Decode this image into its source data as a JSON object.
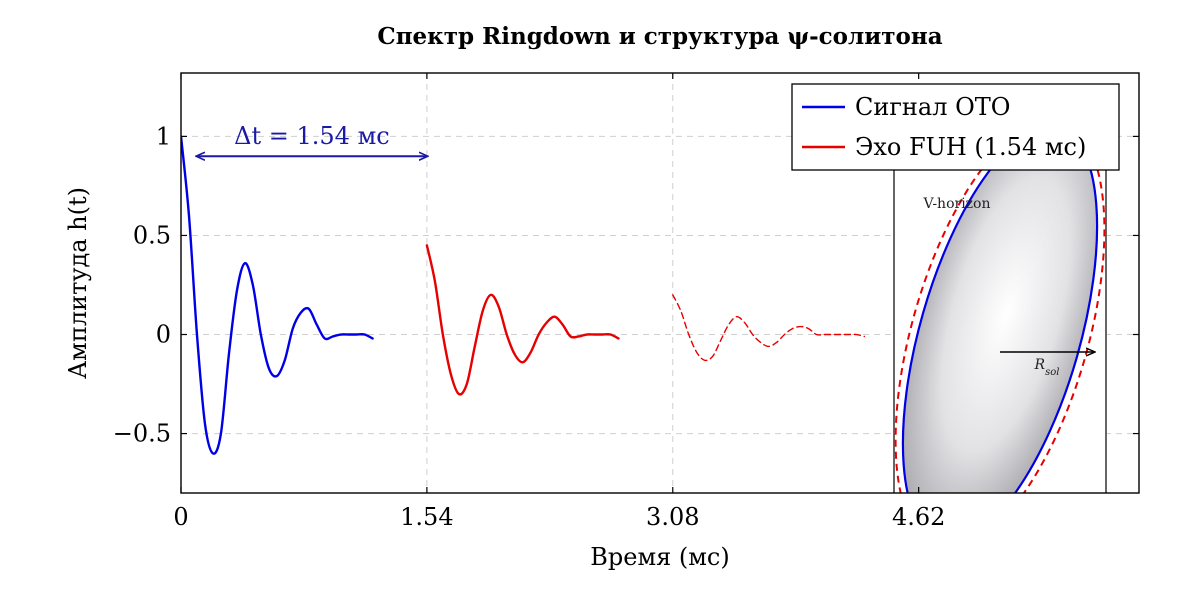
{
  "chart_data": {
    "type": "line",
    "title": "Спектр Ringdown и структура ψ-солитона",
    "xlabel": "Время (мс)",
    "ylabel": "Амплитуда h(t)",
    "xlim": [
      0,
      6
    ],
    "ylim": [
      -0.8,
      1.32
    ],
    "x_ticks": [
      {
        "value": 0,
        "label": "0"
      },
      {
        "value": 1.54,
        "label": "1.54"
      },
      {
        "value": 3.08,
        "label": "3.08"
      },
      {
        "value": 4.62,
        "label": "4.62"
      }
    ],
    "y_ticks": [
      {
        "value": 1,
        "label": "1"
      },
      {
        "value": 0.5,
        "label": "0.5"
      },
      {
        "value": 0,
        "label": "0"
      },
      {
        "value": -0.5,
        "label": "−0.5"
      }
    ],
    "grid": true,
    "legend_position": "top-right",
    "series": [
      {
        "name": "Сигнал ОТО",
        "color": "#0000e6",
        "style": "solid",
        "x": [
          0.0,
          0.05,
          0.1,
          0.15,
          0.2,
          0.25,
          0.3,
          0.35,
          0.4,
          0.45,
          0.5,
          0.55,
          0.6,
          0.65,
          0.7,
          0.75,
          0.8,
          0.85,
          0.9,
          0.95,
          1.0,
          1.05,
          1.1,
          1.15,
          1.2
        ],
        "y": [
          1.0,
          0.6,
          0.0,
          -0.45,
          -0.6,
          -0.5,
          -0.1,
          0.22,
          0.36,
          0.25,
          0.0,
          -0.17,
          -0.21,
          -0.13,
          0.03,
          0.11,
          0.13,
          0.05,
          -0.02,
          -0.01,
          0.0,
          0.0,
          0.0,
          0.0,
          -0.02
        ]
      },
      {
        "name": "Эхо FUH (1.54 мс)",
        "color": "#e60000",
        "style": "solid",
        "x": [
          1.54,
          1.59,
          1.64,
          1.69,
          1.74,
          1.79,
          1.84,
          1.89,
          1.94,
          1.99,
          2.04,
          2.09,
          2.14,
          2.19,
          2.24,
          2.29,
          2.34,
          2.39,
          2.44,
          2.49,
          2.54,
          2.59,
          2.64,
          2.69,
          2.74
        ],
        "y": [
          0.45,
          0.27,
          0.0,
          -0.2,
          -0.3,
          -0.25,
          -0.06,
          0.12,
          0.2,
          0.14,
          0.0,
          -0.1,
          -0.14,
          -0.09,
          0.0,
          0.06,
          0.09,
          0.05,
          -0.01,
          -0.01,
          0.0,
          0.0,
          0.0,
          0.0,
          -0.02
        ]
      },
      {
        "name": "",
        "color": "#e60000",
        "style": "dashed",
        "x": [
          3.08,
          3.13,
          3.18,
          3.23,
          3.28,
          3.33,
          3.38,
          3.43,
          3.48,
          3.53,
          3.58,
          3.63,
          3.68,
          3.73,
          3.78,
          3.83,
          3.88,
          3.93,
          3.98,
          4.03,
          4.08,
          4.13,
          4.18,
          4.23,
          4.28
        ],
        "y": [
          0.2,
          0.12,
          0.0,
          -0.09,
          -0.13,
          -0.11,
          -0.03,
          0.05,
          0.09,
          0.06,
          0.0,
          -0.04,
          -0.06,
          -0.04,
          0.0,
          0.03,
          0.04,
          0.03,
          0.0,
          0.0,
          0.0,
          0.0,
          0.0,
          0.0,
          -0.01
        ]
      }
    ],
    "annotations": {
      "delta_t": {
        "label": "Δt = 1.54 мс",
        "from_x": 0.1,
        "to_x": 1.54,
        "y": 0.9
      },
      "soliton": {
        "horizon_label": "V-horizon",
        "radius_label": "R_sol"
      }
    }
  }
}
